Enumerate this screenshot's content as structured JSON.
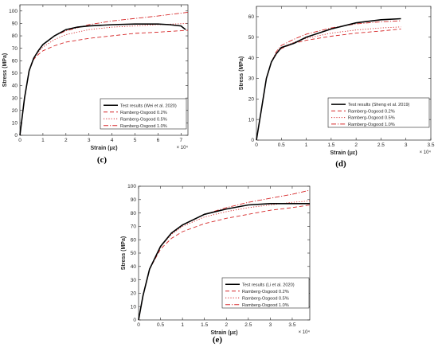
{
  "chart_data": [
    {
      "type": "line",
      "panel_label": "(c)",
      "xlabel": "Strain (με)",
      "ylabel": "Stress (MPa)",
      "x_multiplier": "× 10⁴",
      "xlim": [
        0,
        7.3
      ],
      "ylim": [
        0,
        105
      ],
      "xticks": [
        0,
        1,
        2,
        3,
        4,
        5,
        6,
        7
      ],
      "xtick_labels": [
        "0",
        "1",
        "2",
        "3",
        "4",
        "5",
        "6",
        "7"
      ],
      "yticks": [
        0,
        10,
        20,
        30,
        40,
        50,
        60,
        70,
        80,
        90,
        100
      ],
      "ytick_labels": [
        "0",
        "10",
        "20",
        "30",
        "40",
        "50",
        "60",
        "70",
        "80",
        "90",
        "100"
      ],
      "legend_position": "middle-right",
      "series": [
        {
          "name": "Test results (Wei et al. 2020)",
          "color": "#000000",
          "style": "solid",
          "x": [
            0,
            0.2,
            0.4,
            0.6,
            0.8,
            1.0,
            1.5,
            2.0,
            2.5,
            3.0,
            4.0,
            5.0,
            6.0,
            6.5,
            7.0,
            7.2
          ],
          "y": [
            0,
            30,
            52,
            62,
            68,
            73,
            80,
            85,
            87,
            88,
            89,
            89.5,
            89.5,
            89,
            88,
            85
          ]
        },
        {
          "name": "Ramberg-Osgood 0.2%",
          "color": "#d62728",
          "style": "dashed",
          "x": [
            0,
            0.2,
            0.4,
            0.6,
            0.8,
            1.0,
            1.5,
            2.0,
            3.0,
            4.0,
            5.0,
            6.0,
            7.3
          ],
          "y": [
            0,
            30,
            52,
            61,
            65,
            68,
            72,
            75,
            78,
            80,
            82,
            83,
            84.5
          ]
        },
        {
          "name": "Ramberg-Osgood 0.5%",
          "color": "#d62728",
          "style": "dotted",
          "x": [
            0,
            0.2,
            0.4,
            0.6,
            0.8,
            1.0,
            1.5,
            2.0,
            3.0,
            4.0,
            5.0,
            6.0,
            7.3
          ],
          "y": [
            0,
            30,
            52,
            62,
            67,
            71,
            77,
            81,
            85,
            87,
            88,
            89,
            90
          ]
        },
        {
          "name": "Ramberg-Osgood 1.0%",
          "color": "#d62728",
          "style": "dashdot",
          "x": [
            0,
            0.2,
            0.4,
            0.6,
            0.8,
            1.0,
            1.5,
            2.0,
            3.0,
            4.0,
            5.0,
            6.0,
            7.3
          ],
          "y": [
            0,
            30,
            52,
            62,
            68,
            73,
            80,
            84,
            89,
            92,
            94,
            96,
            99
          ]
        }
      ]
    },
    {
      "type": "line",
      "panel_label": "(d)",
      "xlabel": "Strain (με)",
      "ylabel": "Stress (MPa)",
      "x_multiplier": "× 10⁴",
      "xlim": [
        0,
        3.5
      ],
      "ylim": [
        0,
        65
      ],
      "xticks": [
        0,
        0.5,
        1,
        1.5,
        2,
        2.5,
        3,
        3.5
      ],
      "xtick_labels": [
        "0",
        "0.5",
        "1",
        "1.5",
        "2",
        "2.5",
        "3",
        "3.5"
      ],
      "yticks": [
        0,
        10,
        20,
        30,
        40,
        50,
        60
      ],
      "ytick_labels": [
        "0",
        "10",
        "20",
        "30",
        "40",
        "50",
        "60"
      ],
      "legend_position": "middle-right",
      "series": [
        {
          "name": "Test results (Sheng et al. 2019)",
          "color": "#000000",
          "style": "solid",
          "x": [
            0,
            0.1,
            0.2,
            0.3,
            0.4,
            0.5,
            0.75,
            1.0,
            1.5,
            2.0,
            2.5,
            2.9
          ],
          "y": [
            0,
            15,
            30,
            38,
            42,
            45,
            47,
            50,
            54,
            57,
            58.5,
            59
          ]
        },
        {
          "name": "Ramberg-Osgood 0.2%",
          "color": "#d62728",
          "style": "dashed",
          "x": [
            0,
            0.1,
            0.2,
            0.3,
            0.4,
            0.5,
            0.75,
            1.0,
            1.5,
            2.0,
            2.5,
            2.9
          ],
          "y": [
            0,
            15,
            30,
            38,
            42,
            44.5,
            47,
            48.5,
            50.5,
            52,
            53,
            54
          ]
        },
        {
          "name": "Ramberg-Osgood 0.5%",
          "color": "#d62728",
          "style": "dotted",
          "x": [
            0,
            0.1,
            0.2,
            0.3,
            0.4,
            0.5,
            0.75,
            1.0,
            1.5,
            2.0,
            2.5,
            2.9
          ],
          "y": [
            0,
            15,
            30,
            38,
            42,
            45,
            47.5,
            49.5,
            52,
            53.5,
            54.5,
            55
          ]
        },
        {
          "name": "Ramberg-Osgood 1.0%",
          "color": "#d62728",
          "style": "dashdot",
          "x": [
            0,
            0.1,
            0.2,
            0.3,
            0.4,
            0.5,
            0.75,
            1.0,
            1.5,
            2.0,
            2.5,
            2.9
          ],
          "y": [
            0,
            15,
            30,
            38,
            43,
            46,
            49,
            51.5,
            54.5,
            56.5,
            57.5,
            58
          ]
        }
      ]
    },
    {
      "type": "line",
      "panel_label": "(e)",
      "xlabel": "Strain (με)",
      "ylabel": "Stress (MPa)",
      "x_multiplier": "× 10⁴",
      "xlim": [
        0,
        3.9
      ],
      "ylim": [
        0,
        100
      ],
      "xticks": [
        0,
        0.5,
        1,
        1.5,
        2,
        2.5,
        3,
        3.5
      ],
      "xtick_labels": [
        "0",
        "0.5",
        "1",
        "1.5",
        "2",
        "2.5",
        "3",
        "3.5"
      ],
      "yticks": [
        0,
        10,
        20,
        30,
        40,
        50,
        60,
        70,
        80,
        90,
        100
      ],
      "ytick_labels": [
        "0",
        "10",
        "20",
        "30",
        "40",
        "50",
        "60",
        "70",
        "80",
        "90",
        "100"
      ],
      "legend_position": "bottom-right",
      "series": [
        {
          "name": "Test results (Li et al. 2020)",
          "color": "#000000",
          "style": "solid",
          "x": [
            0,
            0.1,
            0.25,
            0.5,
            0.75,
            1.0,
            1.5,
            2.0,
            2.5,
            3.0,
            3.5,
            3.9
          ],
          "y": [
            0,
            18,
            38,
            55,
            65,
            71,
            79,
            83,
            86,
            87,
            87,
            87
          ]
        },
        {
          "name": "Ramberg-Osgood 0.2%",
          "color": "#d62728",
          "style": "dashed",
          "x": [
            0,
            0.1,
            0.25,
            0.5,
            0.75,
            1.0,
            1.5,
            2.0,
            2.5,
            3.0,
            3.5,
            3.9
          ],
          "y": [
            0,
            18,
            38,
            53,
            61,
            66,
            72,
            76,
            79,
            82,
            84,
            86
          ]
        },
        {
          "name": "Ramberg-Osgood 0.5%",
          "color": "#d62728",
          "style": "dotted",
          "x": [
            0,
            0.1,
            0.25,
            0.5,
            0.75,
            1.0,
            1.5,
            2.0,
            2.5,
            3.0,
            3.5,
            3.9
          ],
          "y": [
            0,
            18,
            38,
            55,
            64,
            70,
            77,
            81,
            84,
            86,
            88,
            89
          ]
        },
        {
          "name": "Ramberg-Osgood 1.0%",
          "color": "#d62728",
          "style": "dashdot",
          "x": [
            0,
            0.1,
            0.25,
            0.5,
            0.75,
            1.0,
            1.5,
            2.0,
            2.5,
            3.0,
            3.5,
            3.9
          ],
          "y": [
            0,
            18,
            38,
            55,
            65,
            71,
            79,
            84,
            88,
            91,
            94,
            97
          ]
        }
      ]
    }
  ]
}
